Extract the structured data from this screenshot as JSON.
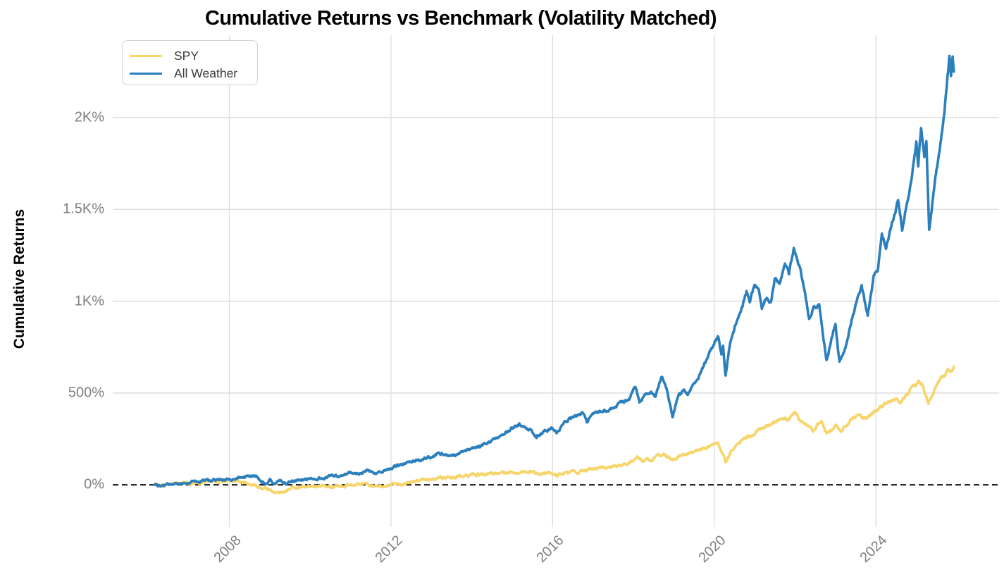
{
  "title": "Cumulative Returns vs Benchmark (Volatility Matched)",
  "y_axis": {
    "label": "Cumulative Returns",
    "ticks": [
      {
        "value": 0,
        "label": "0%"
      },
      {
        "value": 500,
        "label": "500%"
      },
      {
        "value": 1000,
        "label": "1K%"
      },
      {
        "value": 1500,
        "label": "1.5K%"
      },
      {
        "value": 2000,
        "label": "2K%"
      }
    ],
    "tick_color": "#7f7f7f"
  },
  "x_axis": {
    "ticks": [
      {
        "value": 2008,
        "label": "2008"
      },
      {
        "value": 2012,
        "label": "2012"
      },
      {
        "value": 2016,
        "label": "2016"
      },
      {
        "value": 2020,
        "label": "2020"
      },
      {
        "value": 2024,
        "label": "2024"
      }
    ],
    "tick_color": "#7f7f7f"
  },
  "colors": {
    "grid": "#dcdcdc",
    "zero_line": "#000000",
    "spy": "#f7d56a",
    "all_weather": "#2b7fbd"
  },
  "chart_data": {
    "type": "line",
    "title": "Cumulative Returns vs Benchmark (Volatility Matched)",
    "xlabel": "",
    "ylabel": "Cumulative Returns",
    "x_unit": "year",
    "xlim": [
      2005.2,
      2026.35
    ],
    "ylim_percent": [
      -229,
      2448
    ],
    "grid": true,
    "legend_position": "upper-left",
    "zero_line": {
      "value": 0,
      "style": "dashed",
      "color": "#000000"
    },
    "series": [
      {
        "name": "SPY",
        "color": "#f7d56a",
        "points": [
          [
            2006.15,
            0
          ],
          [
            2006.4,
            -3
          ],
          [
            2006.7,
            3
          ],
          [
            2007.0,
            8
          ],
          [
            2007.3,
            12
          ],
          [
            2007.6,
            16
          ],
          [
            2007.8,
            13
          ],
          [
            2008.0,
            18
          ],
          [
            2008.15,
            22
          ],
          [
            2008.3,
            15
          ],
          [
            2008.5,
            5
          ],
          [
            2008.7,
            -8
          ],
          [
            2008.85,
            -25
          ],
          [
            2009.0,
            -28
          ],
          [
            2009.15,
            -43
          ],
          [
            2009.3,
            -35
          ],
          [
            2009.5,
            -22
          ],
          [
            2009.75,
            -15
          ],
          [
            2010.0,
            -10
          ],
          [
            2010.3,
            -5
          ],
          [
            2010.55,
            -12
          ],
          [
            2010.8,
            -4
          ],
          [
            2011.1,
            2
          ],
          [
            2011.4,
            5
          ],
          [
            2011.65,
            -8
          ],
          [
            2011.9,
            -5
          ],
          [
            2012.1,
            5
          ],
          [
            2012.4,
            12
          ],
          [
            2012.7,
            18
          ],
          [
            2013.0,
            28
          ],
          [
            2013.3,
            38
          ],
          [
            2013.6,
            45
          ],
          [
            2013.9,
            52
          ],
          [
            2014.2,
            55
          ],
          [
            2014.5,
            60
          ],
          [
            2014.8,
            65
          ],
          [
            2015.1,
            70
          ],
          [
            2015.4,
            72
          ],
          [
            2015.65,
            58
          ],
          [
            2015.8,
            68
          ],
          [
            2016.0,
            60
          ],
          [
            2016.1,
            52
          ],
          [
            2016.3,
            65
          ],
          [
            2016.6,
            72
          ],
          [
            2016.85,
            78
          ],
          [
            2017.1,
            88
          ],
          [
            2017.4,
            98
          ],
          [
            2017.7,
            108
          ],
          [
            2017.95,
            125
          ],
          [
            2018.1,
            148
          ],
          [
            2018.25,
            128
          ],
          [
            2018.45,
            138
          ],
          [
            2018.6,
            155
          ],
          [
            2018.75,
            170
          ],
          [
            2018.85,
            150
          ],
          [
            2018.97,
            133
          ],
          [
            2019.15,
            160
          ],
          [
            2019.3,
            172
          ],
          [
            2019.45,
            168
          ],
          [
            2019.6,
            185
          ],
          [
            2019.8,
            200
          ],
          [
            2020.0,
            225
          ],
          [
            2020.1,
            232
          ],
          [
            2020.28,
            120
          ],
          [
            2020.45,
            190
          ],
          [
            2020.6,
            225
          ],
          [
            2020.75,
            245
          ],
          [
            2020.9,
            265
          ],
          [
            2021.1,
            300
          ],
          [
            2021.3,
            320
          ],
          [
            2021.5,
            345
          ],
          [
            2021.7,
            368
          ],
          [
            2021.85,
            360
          ],
          [
            2022.0,
            395
          ],
          [
            2022.15,
            350
          ],
          [
            2022.3,
            330
          ],
          [
            2022.45,
            287
          ],
          [
            2022.55,
            330
          ],
          [
            2022.65,
            345
          ],
          [
            2022.78,
            280
          ],
          [
            2022.9,
            300
          ],
          [
            2023.0,
            320
          ],
          [
            2023.15,
            295
          ],
          [
            2023.3,
            330
          ],
          [
            2023.45,
            355
          ],
          [
            2023.6,
            375
          ],
          [
            2023.75,
            350
          ],
          [
            2023.9,
            385
          ],
          [
            2024.05,
            410
          ],
          [
            2024.2,
            435
          ],
          [
            2024.35,
            455
          ],
          [
            2024.5,
            465
          ],
          [
            2024.6,
            450
          ],
          [
            2024.75,
            490
          ],
          [
            2024.9,
            530
          ],
          [
            2025.05,
            560
          ],
          [
            2025.15,
            540
          ],
          [
            2025.3,
            441
          ],
          [
            2025.45,
            520
          ],
          [
            2025.55,
            560
          ],
          [
            2025.7,
            590
          ],
          [
            2025.8,
            630
          ],
          [
            2025.87,
            612
          ],
          [
            2025.93,
            644
          ]
        ]
      },
      {
        "name": "All Weather",
        "color": "#2b7fbd",
        "points": [
          [
            2006.15,
            0
          ],
          [
            2006.35,
            -8
          ],
          [
            2006.5,
            -3
          ],
          [
            2006.7,
            5
          ],
          [
            2007.0,
            10
          ],
          [
            2007.3,
            18
          ],
          [
            2007.6,
            24
          ],
          [
            2007.8,
            28
          ],
          [
            2008.1,
            34
          ],
          [
            2008.3,
            42
          ],
          [
            2008.5,
            46
          ],
          [
            2008.7,
            40
          ],
          [
            2008.8,
            20
          ],
          [
            2008.9,
            10
          ],
          [
            2009.0,
            25
          ],
          [
            2009.1,
            5
          ],
          [
            2009.25,
            22
          ],
          [
            2009.4,
            13
          ],
          [
            2009.6,
            20
          ],
          [
            2009.8,
            27
          ],
          [
            2010.1,
            38
          ],
          [
            2010.4,
            44
          ],
          [
            2010.6,
            42
          ],
          [
            2010.9,
            58
          ],
          [
            2011.1,
            65
          ],
          [
            2011.4,
            72
          ],
          [
            2011.6,
            66
          ],
          [
            2011.9,
            85
          ],
          [
            2012.1,
            100
          ],
          [
            2012.4,
            115
          ],
          [
            2012.7,
            135
          ],
          [
            2012.9,
            150
          ],
          [
            2013.2,
            168
          ],
          [
            2013.5,
            160
          ],
          [
            2013.8,
            185
          ],
          [
            2014.1,
            200
          ],
          [
            2014.4,
            230
          ],
          [
            2014.7,
            260
          ],
          [
            2015.0,
            310
          ],
          [
            2015.2,
            330
          ],
          [
            2015.45,
            305
          ],
          [
            2015.6,
            262
          ],
          [
            2015.8,
            300
          ],
          [
            2015.95,
            310
          ],
          [
            2016.1,
            282
          ],
          [
            2016.3,
            345
          ],
          [
            2016.55,
            370
          ],
          [
            2016.75,
            388
          ],
          [
            2016.85,
            345
          ],
          [
            2017.0,
            390
          ],
          [
            2017.3,
            405
          ],
          [
            2017.6,
            440
          ],
          [
            2017.9,
            470
          ],
          [
            2018.05,
            540
          ],
          [
            2018.15,
            445
          ],
          [
            2018.3,
            490
          ],
          [
            2018.45,
            505
          ],
          [
            2018.55,
            480
          ],
          [
            2018.7,
            590
          ],
          [
            2018.8,
            545
          ],
          [
            2018.97,
            375
          ],
          [
            2019.1,
            485
          ],
          [
            2019.25,
            520
          ],
          [
            2019.35,
            500
          ],
          [
            2019.55,
            567
          ],
          [
            2019.75,
            650
          ],
          [
            2019.9,
            720
          ],
          [
            2020.1,
            810
          ],
          [
            2020.18,
            700
          ],
          [
            2020.22,
            760
          ],
          [
            2020.28,
            605
          ],
          [
            2020.4,
            780
          ],
          [
            2020.55,
            890
          ],
          [
            2020.7,
            970
          ],
          [
            2020.8,
            1060
          ],
          [
            2020.88,
            1000
          ],
          [
            2021.0,
            1090
          ],
          [
            2021.1,
            1070
          ],
          [
            2021.18,
            950
          ],
          [
            2021.3,
            1020
          ],
          [
            2021.4,
            990
          ],
          [
            2021.5,
            1130
          ],
          [
            2021.62,
            1090
          ],
          [
            2021.75,
            1200
          ],
          [
            2021.85,
            1150
          ],
          [
            2021.97,
            1276
          ],
          [
            2022.1,
            1190
          ],
          [
            2022.2,
            1100
          ],
          [
            2022.35,
            900
          ],
          [
            2022.45,
            960
          ],
          [
            2022.6,
            990
          ],
          [
            2022.7,
            800
          ],
          [
            2022.78,
            680
          ],
          [
            2022.9,
            800
          ],
          [
            2023.0,
            870
          ],
          [
            2023.1,
            670
          ],
          [
            2023.25,
            750
          ],
          [
            2023.4,
            900
          ],
          [
            2023.55,
            1010
          ],
          [
            2023.65,
            1080
          ],
          [
            2023.8,
            920
          ],
          [
            2023.95,
            1150
          ],
          [
            2024.05,
            1180
          ],
          [
            2024.15,
            1370
          ],
          [
            2024.25,
            1290
          ],
          [
            2024.4,
            1420
          ],
          [
            2024.55,
            1560
          ],
          [
            2024.65,
            1400
          ],
          [
            2024.8,
            1570
          ],
          [
            2024.9,
            1680
          ],
          [
            2025.0,
            1860
          ],
          [
            2025.05,
            1750
          ],
          [
            2025.12,
            1950
          ],
          [
            2025.2,
            1800
          ],
          [
            2025.25,
            1870
          ],
          [
            2025.32,
            1390
          ],
          [
            2025.45,
            1620
          ],
          [
            2025.55,
            1780
          ],
          [
            2025.65,
            1950
          ],
          [
            2025.75,
            2150
          ],
          [
            2025.82,
            2330
          ],
          [
            2025.86,
            2230
          ],
          [
            2025.9,
            2340
          ],
          [
            2025.93,
            2250
          ]
        ]
      }
    ]
  }
}
